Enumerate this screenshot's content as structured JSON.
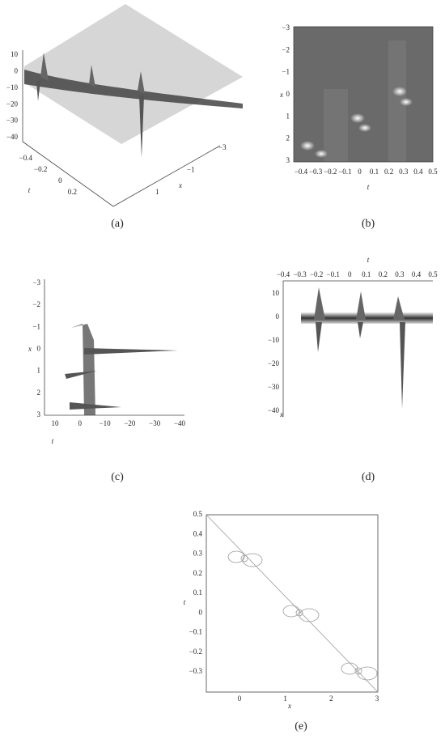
{
  "panels": [
    {
      "caption": "(a)",
      "z_ticks": [
        "10",
        "0",
        "−10",
        "−20",
        "−30",
        "−40"
      ],
      "t_ticks": [
        "−0.4",
        "−0.2",
        "0",
        "0.2"
      ],
      "x_ticks": [
        "−3",
        "−1",
        "1"
      ],
      "t_label": "t",
      "x_label": "x"
    },
    {
      "caption": "(b)",
      "x_ticks": [
        "−3",
        "−2",
        "−1",
        "0",
        "1",
        "2",
        "3"
      ],
      "t_ticks": [
        "−0.4",
        "−0.3",
        "−0.2",
        "−0.1",
        "0",
        "0.1",
        "0.2",
        "0.3",
        "0.4",
        "0.5"
      ],
      "x_label": "x",
      "t_label": "t"
    },
    {
      "caption": "(c)",
      "x_ticks": [
        "−3",
        "−2",
        "−1",
        "0",
        "1",
        "2",
        "3"
      ],
      "z_ticks": [
        "10",
        "0",
        "−10",
        "−20",
        "−30",
        "−40"
      ],
      "x_label": "x",
      "t_label": "t"
    },
    {
      "caption": "(d)",
      "t_ticks": [
        "−0.4",
        "−0.3",
        "−0.2",
        "−0.1",
        "0",
        "0.1",
        "0.2",
        "0.3",
        "0.4",
        "0.5"
      ],
      "z_ticks": [
        "10",
        "0",
        "−10",
        "−20",
        "−30",
        "−40"
      ],
      "t_label": "t",
      "x_label": "x"
    },
    {
      "caption": "(e)",
      "t_ticks": [
        "0.5",
        "0.4",
        "0.3",
        "0.2",
        "0.1",
        "0",
        "−0.1",
        "−0.2",
        "−0.3"
      ],
      "x_ticks": [
        "0",
        "1",
        "2",
        "3"
      ],
      "t_label": "t",
      "x_label": "x"
    }
  ]
}
